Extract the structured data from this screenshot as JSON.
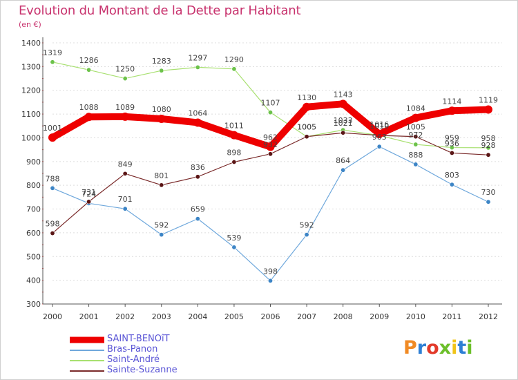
{
  "header": {
    "title": "Evolution du Montant de la Dette par Habitant",
    "subtitle": "(en €)"
  },
  "brand": {
    "text": "Proxiti",
    "colors": [
      "#f08a24",
      "#2e7fd4",
      "#e23a2a",
      "#6cbf2a",
      "#f0c419",
      "#2e7fd4",
      "#6cbf2a"
    ]
  },
  "chart_data": {
    "type": "line",
    "title": "Evolution du Montant de la Dette par Habitant",
    "subtitle": "(en €)",
    "xlabel": "",
    "ylabel": "",
    "ylim": [
      300,
      1400
    ],
    "yticks": [
      300,
      400,
      500,
      600,
      700,
      800,
      900,
      1000,
      1100,
      1200,
      1300,
      1400
    ],
    "x": [
      "2000",
      "2001",
      "2002",
      "2003",
      "2004",
      "2005",
      "2006",
      "2007",
      "2008",
      "2009",
      "2010",
      "2011",
      "2012"
    ],
    "grid": "horizontal-dashed",
    "legend_position": "bottom-left",
    "series": [
      {
        "name": "SAINT-BENOîT",
        "color": "#ee0000",
        "marker_color": "#ee0000",
        "thick": true,
        "values": [
          1001,
          1088,
          1089,
          1080,
          1064,
          1011,
          962,
          1130,
          1143,
          1016,
          1084,
          1114,
          1119
        ]
      },
      {
        "name": "Bras-Panon",
        "color": "#6fa8dc",
        "marker_color": "#3d85c6",
        "values": [
          788,
          724,
          701,
          592,
          659,
          539,
          398,
          592,
          864,
          963,
          888,
          803,
          730
        ]
      },
      {
        "name": "Saint-André",
        "color": "#a8e070",
        "marker_color": "#6cc24a",
        "values": [
          1319,
          1286,
          1250,
          1283,
          1297,
          1290,
          1107,
          1005,
          1033,
          1010,
          972,
          959,
          958
        ]
      },
      {
        "name": "Sainte-Suzanne",
        "color": "#7a2a2a",
        "marker_color": "#5a1515",
        "values": [
          598,
          731,
          849,
          801,
          836,
          898,
          932,
          1005,
          1021,
          1010,
          1005,
          936,
          928
        ]
      }
    ]
  }
}
